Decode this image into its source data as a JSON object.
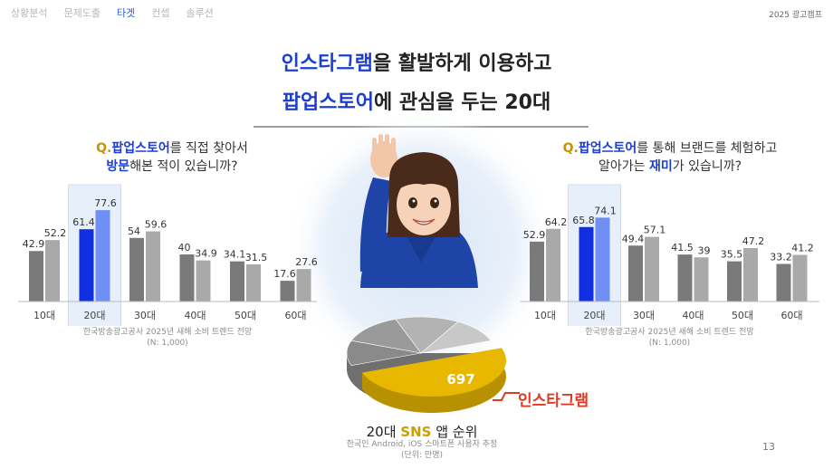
{
  "nav": {
    "items": [
      "상황분석",
      "문제도출",
      "타겟",
      "컨셉",
      "솔루션"
    ],
    "active_index": 2
  },
  "brand": "2025 광고캠프",
  "headline": {
    "line1_accent": "인스타그램",
    "line1_rest": "을 활발하게 이용하고",
    "line2_accent": "팝업스토어",
    "line2_rest": "에 관심을 두는 20대"
  },
  "left_question": {
    "mark": "Q.",
    "accent": "팝업스토어",
    "rest1": "를 직접 찾아서",
    "accent2": "방문",
    "rest2": "해본 적이 있습니까?"
  },
  "right_question": {
    "mark": "Q.",
    "accent": "팝업스토어",
    "rest1": "를 통해 브랜드를 체험하고",
    "pre2": "알아가는 ",
    "accent2": "재미",
    "rest2": "가 있습니까?"
  },
  "source_left": {
    "line1": "한국방송광고공사 2025년 새해 소비 트렌드 전망",
    "line2": "(N: 1,000)"
  },
  "source_right": {
    "line1": "한국방송광고공사 2025년 새해 소비 트렌드 전망",
    "line2": "(N: 1,000)"
  },
  "chart_data": [
    {
      "type": "bar",
      "categories": [
        "10대",
        "20대",
        "30대",
        "40대",
        "50대",
        "60대"
      ],
      "series": [
        {
          "values": [
            42.9,
            61.4,
            54,
            40,
            34.1,
            17.6
          ]
        },
        {
          "values": [
            52.2,
            77.6,
            59.6,
            34.9,
            31.5,
            27.6
          ]
        }
      ],
      "highlight_category": "20대",
      "colors": {
        "dark": "#7a7a7a",
        "light": "#a9a9a9",
        "hl_dark": "#0f2fe0",
        "hl_light": "#6f8ff5"
      }
    },
    {
      "type": "bar",
      "categories": [
        "10대",
        "20대",
        "30대",
        "40대",
        "50대",
        "60대"
      ],
      "series": [
        {
          "values": [
            52.9,
            65.8,
            49.4,
            41.5,
            35.5,
            33.2
          ]
        },
        {
          "values": [
            64.2,
            74.1,
            57.1,
            39,
            47.2,
            41.2
          ]
        }
      ],
      "highlight_category": "20대",
      "colors": {
        "dark": "#7a7a7a",
        "light": "#a9a9a9",
        "hl_dark": "#0f2fe0",
        "hl_light": "#6f8ff5"
      }
    },
    {
      "type": "pie",
      "labels": [
        "인스타그램"
      ],
      "values": [
        697
      ],
      "colors": {
        "accent": "#e8b700",
        "others": "#8c8c8c"
      }
    }
  ],
  "sns": {
    "title_pre": "20대 ",
    "title_accent": "SNS",
    "title_post": " 앱 순위",
    "value_label": "697",
    "callout": "인스타그램",
    "source1": "한국인 Android, iOS 스마트폰 사용자 추정",
    "source2": "(단위: 만명)"
  },
  "page_number": "13"
}
